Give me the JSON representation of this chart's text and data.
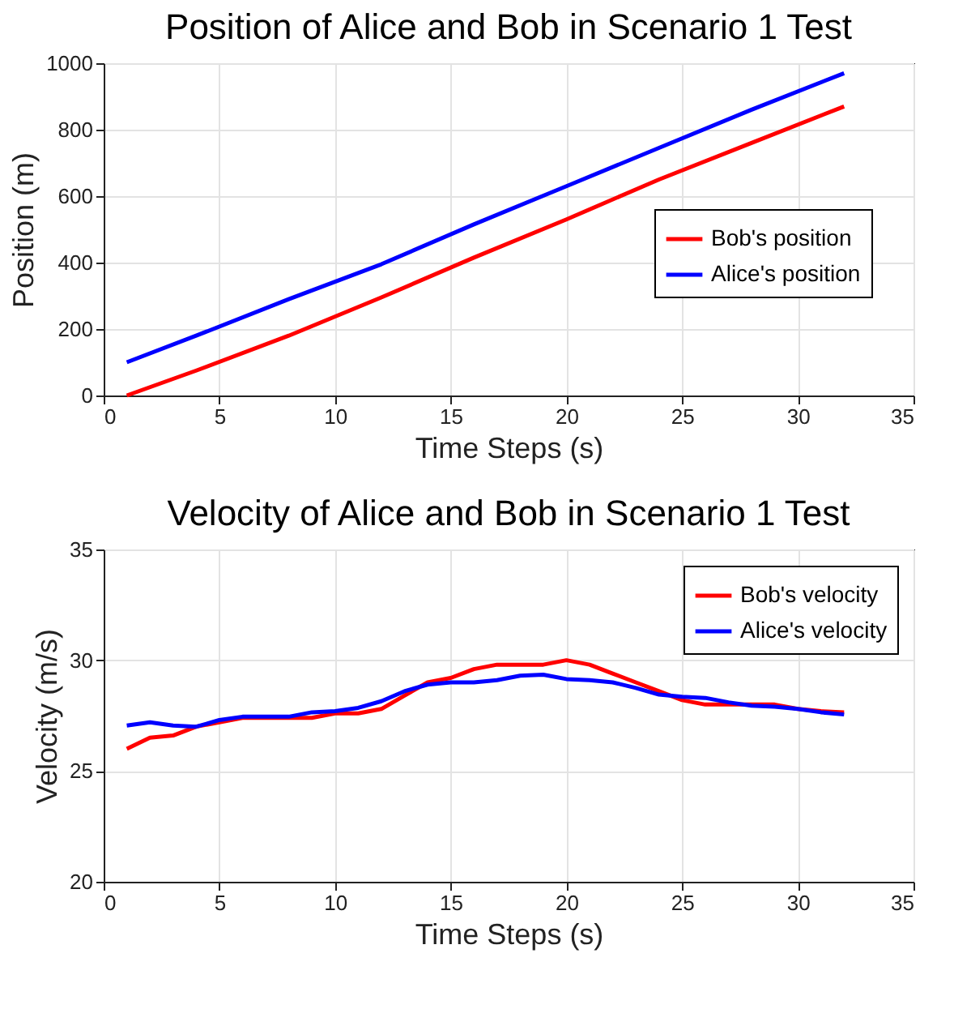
{
  "chart_data": [
    {
      "type": "line",
      "title": "Position of Alice and Bob in Scenario 1 Test",
      "xlabel": "Time Steps (s)",
      "ylabel": "Position (m)",
      "xlim": [
        0,
        35
      ],
      "xticks": [
        0,
        5,
        10,
        15,
        20,
        25,
        30,
        35
      ],
      "ylim": [
        0,
        1000
      ],
      "yticks": [
        0,
        200,
        400,
        600,
        800,
        1000
      ],
      "grid": true,
      "legend": "right",
      "line_style": "solid",
      "marker": "none",
      "series": [
        {
          "name": "Bob's position",
          "color": "#ff0000",
          "x": [
            1,
            4,
            8,
            12,
            16,
            20,
            24,
            28,
            32
          ],
          "values": [
            0,
            75,
            180,
            295,
            415,
            530,
            650,
            760,
            870
          ]
        },
        {
          "name": "Alice's position",
          "color": "#0000ff",
          "x": [
            1,
            4,
            8,
            12,
            16,
            20,
            24,
            28,
            32
          ],
          "values": [
            100,
            180,
            290,
            395,
            515,
            630,
            745,
            860,
            970
          ]
        }
      ]
    },
    {
      "type": "line",
      "title": "Velocity of Alice and Bob in Scenario 1 Test",
      "xlabel": "Time Steps (s)",
      "ylabel": "Velocity (m/s)",
      "xlim": [
        0,
        35
      ],
      "xticks": [
        0,
        5,
        10,
        15,
        20,
        25,
        30,
        35
      ],
      "ylim": [
        20,
        35
      ],
      "yticks": [
        20,
        25,
        30,
        35
      ],
      "grid": true,
      "legend": "top right",
      "line_style": "solid",
      "marker": "none",
      "x": [
        1,
        2,
        3,
        4,
        5,
        6,
        7,
        8,
        9,
        10,
        11,
        12,
        13,
        14,
        15,
        16,
        17,
        18,
        19,
        20,
        21,
        22,
        23,
        24,
        25,
        26,
        27,
        28,
        29,
        30,
        31,
        32
      ],
      "series": [
        {
          "name": "Bob's velocity",
          "color": "#ff0000",
          "values": [
            26.0,
            26.5,
            26.6,
            27.0,
            27.2,
            27.4,
            27.4,
            27.4,
            27.4,
            27.6,
            27.6,
            27.8,
            28.4,
            29.0,
            29.2,
            29.6,
            29.8,
            29.8,
            29.8,
            30.0,
            29.8,
            29.4,
            29.0,
            28.6,
            28.2,
            28.0,
            28.0,
            28.0,
            28.0,
            27.8,
            27.7,
            27.65
          ]
        },
        {
          "name": "Alice's velocity",
          "color": "#0000ff",
          "values": [
            27.05,
            27.2,
            27.05,
            27.0,
            27.3,
            27.45,
            27.45,
            27.45,
            27.65,
            27.7,
            27.85,
            28.15,
            28.6,
            28.9,
            29.0,
            29.0,
            29.1,
            29.3,
            29.35,
            29.15,
            29.1,
            29.0,
            28.75,
            28.45,
            28.35,
            28.3,
            28.1,
            27.95,
            27.9,
            27.8,
            27.65,
            27.55
          ]
        }
      ]
    }
  ]
}
